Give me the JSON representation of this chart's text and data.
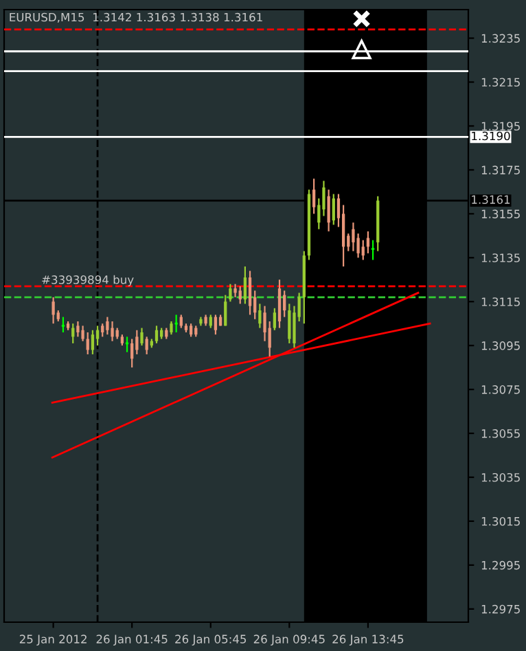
{
  "chart_data": {
    "type": "candlestick",
    "title": "EURUSD,M15  1.3142 1.3163 1.3138 1.3161",
    "x": [
      "2012-01-25T21:45",
      "2012-01-25T22:00",
      "2012-01-25T22:15",
      "2012-01-25T22:30",
      "2012-01-25T22:45",
      "2012-01-25T23:00",
      "2012-01-25T23:15",
      "2012-01-25T23:30",
      "2012-01-25T23:45",
      "2012-01-26T00:00",
      "2012-01-26T00:15",
      "2012-01-26T00:30",
      "2012-01-26T00:45",
      "2012-01-26T01:00",
      "2012-01-26T01:15",
      "2012-01-26T01:30",
      "2012-01-26T01:45",
      "2012-01-26T02:00",
      "2012-01-26T02:15",
      "2012-01-26T02:30",
      "2012-01-26T02:45",
      "2012-01-26T03:00",
      "2012-01-26T03:15",
      "2012-01-26T03:30",
      "2012-01-26T03:45",
      "2012-01-26T04:00",
      "2012-01-26T04:15",
      "2012-01-26T04:30",
      "2012-01-26T04:45",
      "2012-01-26T05:00",
      "2012-01-26T05:15",
      "2012-01-26T05:30",
      "2012-01-26T05:45",
      "2012-01-26T06:00",
      "2012-01-26T06:15",
      "2012-01-26T06:30",
      "2012-01-26T06:45",
      "2012-01-26T07:00",
      "2012-01-26T07:15",
      "2012-01-26T07:30",
      "2012-01-26T07:45",
      "2012-01-26T08:00",
      "2012-01-26T08:15",
      "2012-01-26T08:30",
      "2012-01-26T08:45",
      "2012-01-26T09:00",
      "2012-01-26T09:15",
      "2012-01-26T09:30",
      "2012-01-26T09:45",
      "2012-01-26T10:00",
      "2012-01-26T10:15",
      "2012-01-26T10:30",
      "2012-01-26T10:45",
      "2012-01-26T11:00",
      "2012-01-26T11:15",
      "2012-01-26T11:30",
      "2012-01-26T11:45",
      "2012-01-26T12:00",
      "2012-01-26T12:15",
      "2012-01-26T12:30",
      "2012-01-26T12:45",
      "2012-01-26T13:00",
      "2012-01-26T13:15",
      "2012-01-26T13:30",
      "2012-01-26T13:45",
      "2012-01-26T14:00",
      "2012-01-26T14:15"
    ],
    "ohlc": [
      [
        1.3115,
        1.3117,
        1.3105,
        1.3109
      ],
      [
        1.311,
        1.3111,
        1.3106,
        1.3107
      ],
      [
        1.3104,
        1.3108,
        1.3101,
        1.3104
      ],
      [
        1.3105,
        1.3106,
        1.3102,
        1.3103
      ],
      [
        1.3099,
        1.3105,
        1.3096,
        1.3103
      ],
      [
        1.3104,
        1.3106,
        1.3099,
        1.3101
      ],
      [
        1.3102,
        1.3104,
        1.3097,
        1.3098
      ],
      [
        1.3098,
        1.3101,
        1.3091,
        1.3093
      ],
      [
        1.3093,
        1.3102,
        1.3091,
        1.31
      ],
      [
        1.3098,
        1.3104,
        1.3095,
        1.3102
      ],
      [
        1.3104,
        1.3105,
        1.3099,
        1.3101
      ],
      [
        1.3106,
        1.3108,
        1.31,
        1.3102
      ],
      [
        1.3103,
        1.3106,
        1.3097,
        1.3099
      ],
      [
        1.3102,
        1.3103,
        1.3098,
        1.3099
      ],
      [
        1.3099,
        1.31,
        1.3095,
        1.3096
      ],
      [
        1.3096,
        1.3099,
        1.3092,
        1.3096
      ],
      [
        1.3096,
        1.3098,
        1.3085,
        1.3089
      ],
      [
        1.3099,
        1.3102,
        1.3091,
        1.3093
      ],
      [
        1.3096,
        1.3103,
        1.3095,
        1.3101
      ],
      [
        1.3098,
        1.3099,
        1.3091,
        1.3093
      ],
      [
        1.3095,
        1.3098,
        1.3094,
        1.3097
      ],
      [
        1.3097,
        1.3104,
        1.3096,
        1.3102
      ],
      [
        1.3099,
        1.3103,
        1.3098,
        1.3102
      ],
      [
        1.3102,
        1.3103,
        1.3098,
        1.3099
      ],
      [
        1.3101,
        1.3106,
        1.31,
        1.3105
      ],
      [
        1.3105,
        1.3109,
        1.3101,
        1.3105
      ],
      [
        1.3108,
        1.3109,
        1.3103,
        1.3104
      ],
      [
        1.3104,
        1.3105,
        1.3101,
        1.3102
      ],
      [
        1.3104,
        1.3105,
        1.3099,
        1.31
      ],
      [
        1.3103,
        1.3104,
        1.3099,
        1.31
      ],
      [
        1.3105,
        1.3108,
        1.3104,
        1.3107
      ],
      [
        1.3108,
        1.3109,
        1.3104,
        1.3105
      ],
      [
        1.3104,
        1.3109,
        1.3103,
        1.3108
      ],
      [
        1.3108,
        1.3109,
        1.31,
        1.3102
      ],
      [
        1.3108,
        1.3109,
        1.3104,
        1.3104
      ],
      [
        1.3104,
        1.3118,
        1.3104,
        1.3115
      ],
      [
        1.3116,
        1.3123,
        1.3115,
        1.3121
      ],
      [
        1.3121,
        1.3123,
        1.3117,
        1.3119
      ],
      [
        1.312,
        1.3122,
        1.3114,
        1.3116
      ],
      [
        1.3116,
        1.3131,
        1.3114,
        1.3126
      ],
      [
        1.3126,
        1.3129,
        1.3109,
        1.3113
      ],
      [
        1.3117,
        1.312,
        1.3107,
        1.311
      ],
      [
        1.3105,
        1.3114,
        1.3103,
        1.3111
      ],
      [
        1.311,
        1.3113,
        1.3097,
        1.3101
      ],
      [
        1.3103,
        1.3106,
        1.309,
        1.3094
      ],
      [
        1.3103,
        1.3112,
        1.3102,
        1.311
      ],
      [
        1.3121,
        1.3125,
        1.3103,
        1.3106
      ],
      [
        1.3118,
        1.312,
        1.3108,
        1.3111
      ],
      [
        1.3098,
        1.3114,
        1.3096,
        1.3111
      ],
      [
        1.3096,
        1.3113,
        1.3094,
        1.311
      ],
      [
        1.3108,
        1.3119,
        1.3106,
        1.3117
      ],
      [
        1.3117,
        1.3138,
        1.3105,
        1.3136
      ],
      [
        1.3136,
        1.3166,
        1.3134,
        1.3164
      ],
      [
        1.3166,
        1.3171,
        1.3155,
        1.3158
      ],
      [
        1.3151,
        1.3162,
        1.3148,
        1.3159
      ],
      [
        1.3157,
        1.317,
        1.3154,
        1.3167
      ],
      [
        1.3163,
        1.3166,
        1.3147,
        1.3151
      ],
      [
        1.3152,
        1.3164,
        1.315,
        1.3162
      ],
      [
        1.3162,
        1.3164,
        1.3149,
        1.3153
      ],
      [
        1.3155,
        1.3159,
        1.3131,
        1.314
      ],
      [
        1.3145,
        1.3146,
        1.3138,
        1.314
      ],
      [
        1.3148,
        1.3151,
        1.3138,
        1.3142
      ],
      [
        1.3144,
        1.3146,
        1.3135,
        1.3137
      ],
      [
        1.314,
        1.3143,
        1.3134,
        1.3136
      ],
      [
        1.3144,
        1.3147,
        1.3137,
        1.314
      ],
      [
        1.3139,
        1.3143,
        1.3134,
        1.3139
      ],
      [
        1.3142,
        1.3163,
        1.3138,
        1.3161
      ]
    ],
    "colors": [
      "#e9967a",
      "#e9967a",
      "#00ff00",
      "#e9967a",
      "#9acd32",
      "#e9967a",
      "#e9967a",
      "#e9967a",
      "#9acd32",
      "#9acd32",
      "#e9967a",
      "#e9967a",
      "#e9967a",
      "#e9967a",
      "#e9967a",
      "#00ff00",
      "#e9967a",
      "#e9967a",
      "#9acd32",
      "#e9967a",
      "#9acd32",
      "#9acd32",
      "#9acd32",
      "#e9967a",
      "#9acd32",
      "#00ff00",
      "#e9967a",
      "#e9967a",
      "#e9967a",
      "#e9967a",
      "#9acd32",
      "#e9967a",
      "#9acd32",
      "#e9967a",
      "#e9967a",
      "#9acd32",
      "#9acd32",
      "#e9967a",
      "#e9967a",
      "#9acd32",
      "#e9967a",
      "#e9967a",
      "#9acd32",
      "#e9967a",
      "#e9967a",
      "#9acd32",
      "#e9967a",
      "#e9967a",
      "#9acd32",
      "#9acd32",
      "#9acd32",
      "#9acd32",
      "#9acd32",
      "#e9967a",
      "#9acd32",
      "#9acd32",
      "#e9967a",
      "#9acd32",
      "#e9967a",
      "#e9967a",
      "#e9967a",
      "#e9967a",
      "#e9967a",
      "#e9967a",
      "#e9967a",
      "#00ff00",
      "#9acd32"
    ],
    "series": [
      {
        "type": "line",
        "color": "#ff0000",
        "x": [
          "2012-01-25T21:42",
          "2012-01-26T16:18"
        ],
        "values": [
          1.3044,
          1.3119
        ]
      },
      {
        "type": "line",
        "color": "#ff0000",
        "x": [
          "2012-01-25T21:42",
          "2012-01-26T16:54"
        ],
        "values": [
          1.3069,
          1.3105
        ]
      }
    ],
    "xlim": [
      "2012-01-25T19:15",
      "2012-01-26T18:51"
    ],
    "ylim": [
      1.2969,
      1.3248
    ],
    "xticks": [
      {
        "value": "2012-01-25T21:45",
        "label": "25 Jan 2012"
      },
      {
        "value": "2012-01-26T01:45",
        "label": "26 Jan 01:45"
      },
      {
        "value": "2012-01-26T05:45",
        "label": "26 Jan 05:45"
      },
      {
        "value": "2012-01-26T09:45",
        "label": "26 Jan 09:45"
      },
      {
        "value": "2012-01-26T13:45",
        "label": "26 Jan 13:45"
      }
    ],
    "yticks": [
      1.2975,
      1.2995,
      1.3015,
      1.3035,
      1.3055,
      1.3075,
      1.3095,
      1.3115,
      1.3135,
      1.3155,
      1.3175,
      1.3195,
      1.3215,
      1.3235
    ],
    "bands": [
      {
        "axis": "x",
        "from": "2012-01-26T10:30",
        "to": "2012-01-26T16:45",
        "color": "#000000"
      }
    ],
    "ref_lines": [
      {
        "axis": "y",
        "value": 1.3239,
        "color": "#ff0000",
        "line_style": "dashed"
      },
      {
        "axis": "y",
        "value": 1.3229,
        "color": "#ffffff",
        "line_style": "solid"
      },
      {
        "axis": "y",
        "value": 1.322,
        "color": "#ffffff",
        "line_style": "solid"
      },
      {
        "axis": "y",
        "value": 1.319,
        "color": "#ffffff",
        "line_style": "solid",
        "label": "1.3190"
      },
      {
        "axis": "y",
        "value": 1.3161,
        "color": "#000000",
        "line_style": "solid",
        "label": "1.3161"
      },
      {
        "axis": "y",
        "value": 1.3122,
        "color": "#ff0000",
        "line_style": "dashed",
        "label": "#33939894 buy"
      },
      {
        "axis": "y",
        "value": 1.3117,
        "color": "#32cd32",
        "line_style": "dashed"
      },
      {
        "axis": "x",
        "value": "2012-01-26T00:00",
        "color": "#000000",
        "line_style": "dashed"
      }
    ],
    "grid": false,
    "legend": false
  }
}
